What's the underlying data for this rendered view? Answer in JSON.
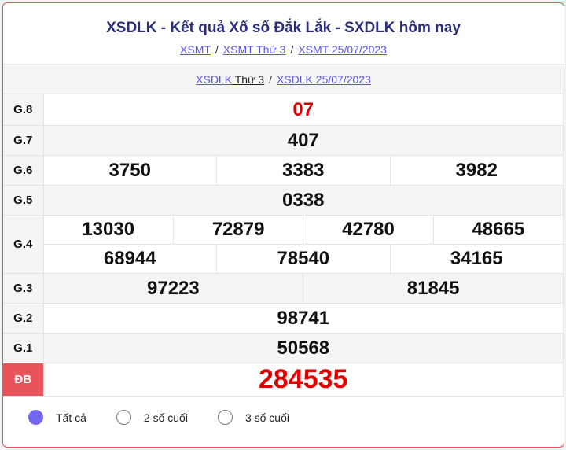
{
  "title": "XSDLK - Kết quả Xổ số Đắk Lắk - SXDLK hôm nay",
  "breadcrumb": [
    "XSMT",
    "XSMT Thứ 3",
    "XSMT 25/07/2023"
  ],
  "sub": {
    "a": "XSDLK",
    "b": " Thứ 3",
    "c": "XSDLK 25/07/2023"
  },
  "sep": "/",
  "prizes": {
    "g8": {
      "label": "G.8",
      "values": [
        "07"
      ]
    },
    "g7": {
      "label": "G.7",
      "values": [
        "407"
      ]
    },
    "g6": {
      "label": "G.6",
      "values": [
        "3750",
        "3383",
        "3982"
      ]
    },
    "g5": {
      "label": "G.5",
      "values": [
        "0338"
      ]
    },
    "g4": {
      "label": "G.4",
      "values": [
        "13030",
        "72879",
        "42780",
        "48665",
        "68944",
        "78540",
        "34165"
      ]
    },
    "g3": {
      "label": "G.3",
      "values": [
        "97223",
        "81845"
      ]
    },
    "g2": {
      "label": "G.2",
      "values": [
        "98741"
      ]
    },
    "g1": {
      "label": "G.1",
      "values": [
        "50568"
      ]
    },
    "db": {
      "label": "ĐB",
      "values": [
        "284535"
      ]
    }
  },
  "filters": [
    {
      "label": "Tất cả",
      "selected": true
    },
    {
      "label": "2 số cuối",
      "selected": false
    },
    {
      "label": "3 số cuối",
      "selected": false
    }
  ],
  "colors": {
    "accent": "#e8545a",
    "title": "#2b2f78",
    "link": "#5a55e8",
    "radio": "#7367f0",
    "highlight": "#e00000"
  }
}
